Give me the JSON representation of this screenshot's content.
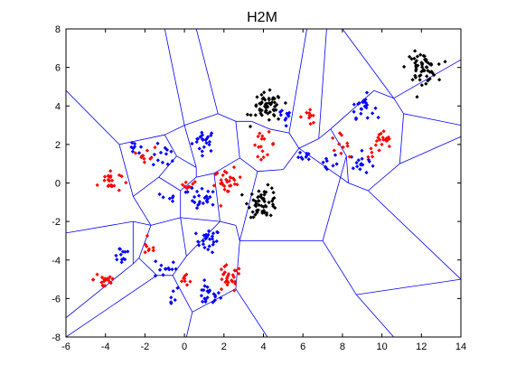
{
  "chart_data": {
    "type": "scatter",
    "title": "H2M",
    "xlabel": "",
    "ylabel": "",
    "xlim": [
      -6,
      14
    ],
    "ylim": [
      -8,
      8
    ],
    "xticks": [
      -6,
      -4,
      -2,
      0,
      2,
      4,
      6,
      8,
      10,
      12,
      14
    ],
    "yticks": [
      -8,
      -6,
      -4,
      -2,
      0,
      2,
      4,
      6,
      8
    ],
    "grid": false,
    "legend": "none",
    "colors": {
      "blue": "#0000ff",
      "red": "#ff0000",
      "black": "#000000",
      "boundary": "#0000ff",
      "frame": "#000000"
    },
    "series": [
      {
        "color": "#0000ff",
        "marker": "dot",
        "clusters": [
          {
            "cx": 1.0,
            "cy": 2.2,
            "spread": 0.3,
            "n": 22
          },
          {
            "cx": 1.0,
            "cy": -0.9,
            "spread": 0.3,
            "n": 20
          },
          {
            "cx": 1.2,
            "cy": -3.0,
            "spread": 0.3,
            "n": 24
          },
          {
            "cx": 1.2,
            "cy": -5.8,
            "spread": 0.3,
            "n": 22
          },
          {
            "cx": -2.5,
            "cy": 1.7,
            "spread": 0.2,
            "n": 8
          },
          {
            "cx": -1.0,
            "cy": 1.4,
            "spread": 0.3,
            "n": 12
          },
          {
            "cx": -1.0,
            "cy": -4.4,
            "spread": 0.3,
            "n": 12
          },
          {
            "cx": -0.8,
            "cy": -0.8,
            "spread": 0.2,
            "n": 6
          },
          {
            "cx": -0.8,
            "cy": -5.9,
            "spread": 0.3,
            "n": 6
          },
          {
            "cx": -3.2,
            "cy": -3.7,
            "spread": 0.25,
            "n": 12
          },
          {
            "cx": 0.2,
            "cy": -0.3,
            "spread": 0.15,
            "n": 4
          },
          {
            "cx": 5.2,
            "cy": 3.4,
            "spread": 0.35,
            "n": 10
          },
          {
            "cx": 6.2,
            "cy": 1.5,
            "spread": 0.2,
            "n": 8
          },
          {
            "cx": 7.2,
            "cy": 1.0,
            "spread": 0.3,
            "n": 10
          },
          {
            "cx": 9.0,
            "cy": 4.0,
            "spread": 0.3,
            "n": 22
          },
          {
            "cx": 9.0,
            "cy": 1.0,
            "spread": 0.3,
            "n": 16
          }
        ]
      },
      {
        "color": "#ff0000",
        "marker": "dot",
        "clusters": [
          {
            "cx": -3.8,
            "cy": 0.1,
            "spread": 0.3,
            "n": 22
          },
          {
            "cx": -1.9,
            "cy": 1.5,
            "spread": 0.2,
            "n": 10
          },
          {
            "cx": 0.2,
            "cy": 0.0,
            "spread": 0.2,
            "n": 8
          },
          {
            "cx": 2.2,
            "cy": 0.0,
            "spread": 0.35,
            "n": 28
          },
          {
            "cx": 4.0,
            "cy": 2.0,
            "spread": 0.3,
            "n": 16
          },
          {
            "cx": 6.3,
            "cy": 3.5,
            "spread": 0.25,
            "n": 10
          },
          {
            "cx": 7.8,
            "cy": 2.0,
            "spread": 0.25,
            "n": 10
          },
          {
            "cx": 10.0,
            "cy": 2.0,
            "spread": 0.35,
            "n": 22
          },
          {
            "cx": -4.0,
            "cy": -5.0,
            "spread": 0.3,
            "n": 20
          },
          {
            "cx": -1.8,
            "cy": -3.4,
            "spread": 0.2,
            "n": 8
          },
          {
            "cx": 0.1,
            "cy": -5.0,
            "spread": 0.2,
            "n": 8
          },
          {
            "cx": 2.2,
            "cy": -5.0,
            "spread": 0.35,
            "n": 26
          }
        ]
      },
      {
        "color": "#000000",
        "marker": "dot",
        "clusters": [
          {
            "cx": 4.2,
            "cy": 3.9,
            "spread": 0.38,
            "n": 55
          },
          {
            "cx": 4.0,
            "cy": -1.0,
            "spread": 0.38,
            "n": 55
          },
          {
            "cx": 12.0,
            "cy": 6.0,
            "spread": 0.38,
            "n": 55
          }
        ]
      }
    ],
    "voronoi_segments": [
      [
        [
          -6,
          -2.6
        ],
        [
          -2.6,
          -2.0
        ]
      ],
      [
        [
          -2.6,
          -2.0
        ],
        [
          -1.7,
          -2.2
        ]
      ],
      [
        [
          -1.7,
          -2.2
        ],
        [
          -0.2,
          -1.8
        ]
      ],
      [
        [
          -0.2,
          -1.8
        ],
        [
          1.8,
          -2.0
        ]
      ],
      [
        [
          1.8,
          -2.0
        ],
        [
          2.6,
          -2.2
        ]
      ],
      [
        [
          2.6,
          -2.2
        ],
        [
          2.8,
          -3.0
        ]
      ],
      [
        [
          -1.7,
          -2.2
        ],
        [
          -2.6,
          -0.7
        ]
      ],
      [
        [
          -2.6,
          -0.7
        ],
        [
          -1.3,
          0.3
        ]
      ],
      [
        [
          -1.3,
          0.3
        ],
        [
          -0.2,
          -0.4
        ]
      ],
      [
        [
          -0.2,
          -0.4
        ],
        [
          -0.2,
          -1.8
        ]
      ],
      [
        [
          -0.2,
          -0.4
        ],
        [
          0.6,
          0.3
        ]
      ],
      [
        [
          0.6,
          0.3
        ],
        [
          1.5,
          0.5
        ]
      ],
      [
        [
          1.5,
          0.5
        ],
        [
          2.8,
          1.3
        ]
      ],
      [
        [
          2.8,
          1.3
        ],
        [
          3.7,
          0.6
        ]
      ],
      [
        [
          3.7,
          0.6
        ],
        [
          5.0,
          0.7
        ]
      ],
      [
        [
          5.0,
          0.7
        ],
        [
          5.8,
          1.8
        ]
      ],
      [
        [
          1.8,
          -2.0
        ],
        [
          1.5,
          0.5
        ]
      ],
      [
        [
          0.6,
          0.3
        ],
        [
          0.6,
          0.8
        ]
      ],
      [
        [
          0.6,
          0.8
        ],
        [
          -0.4,
          1.4
        ]
      ],
      [
        [
          -1.3,
          0.3
        ],
        [
          -0.4,
          1.4
        ]
      ],
      [
        [
          -0.4,
          1.4
        ],
        [
          -1.0,
          2.5
        ]
      ],
      [
        [
          -1.0,
          2.5
        ],
        [
          -3.3,
          2.0
        ]
      ],
      [
        [
          -3.3,
          2.0
        ],
        [
          -6,
          4.8
        ]
      ],
      [
        [
          -3.3,
          2.0
        ],
        [
          -2.6,
          -0.7
        ]
      ],
      [
        [
          -1.0,
          2.5
        ],
        [
          0.0,
          3.0
        ]
      ],
      [
        [
          0.0,
          3.0
        ],
        [
          1.7,
          3.6
        ]
      ],
      [
        [
          1.7,
          3.6
        ],
        [
          2.6,
          3.2
        ]
      ],
      [
        [
          2.6,
          3.2
        ],
        [
          2.8,
          1.3
        ]
      ],
      [
        [
          0.0,
          3.0
        ],
        [
          -1.0,
          8
        ]
      ],
      [
        [
          0.6,
          8
        ],
        [
          1.7,
          3.6
        ]
      ],
      [
        [
          0.6,
          0.8
        ],
        [
          0.0,
          3.0
        ]
      ],
      [
        [
          2.6,
          3.2
        ],
        [
          3.4,
          3.2
        ]
      ],
      [
        [
          3.4,
          3.2
        ],
        [
          4.3,
          2.8
        ]
      ],
      [
        [
          4.3,
          2.8
        ],
        [
          5.3,
          2.6
        ]
      ],
      [
        [
          5.3,
          2.6
        ],
        [
          5.8,
          1.8
        ]
      ],
      [
        [
          5.3,
          2.6
        ],
        [
          6.2,
          8
        ]
      ],
      [
        [
          5.8,
          1.8
        ],
        [
          6.8,
          2.3
        ]
      ],
      [
        [
          6.8,
          2.3
        ],
        [
          7.2,
          8
        ]
      ],
      [
        [
          6.8,
          2.3
        ],
        [
          7.4,
          2.8
        ]
      ],
      [
        [
          7.4,
          2.8
        ],
        [
          8.2,
          1.4
        ]
      ],
      [
        [
          8.2,
          1.4
        ],
        [
          8.3,
          0.0
        ]
      ],
      [
        [
          8.3,
          0.0
        ],
        [
          5.8,
          1.8
        ]
      ],
      [
        [
          8.3,
          0.0
        ],
        [
          9.3,
          -0.4
        ]
      ],
      [
        [
          9.3,
          -0.4
        ],
        [
          10.9,
          1.0
        ]
      ],
      [
        [
          10.9,
          1.0
        ],
        [
          14,
          2.4
        ]
      ],
      [
        [
          10.9,
          1.0
        ],
        [
          11.1,
          3.6
        ]
      ],
      [
        [
          11.1,
          3.6
        ],
        [
          14,
          3.0
        ]
      ],
      [
        [
          11.1,
          3.6
        ],
        [
          10.6,
          4.4
        ]
      ],
      [
        [
          10.6,
          4.4
        ],
        [
          8.0,
          8
        ]
      ],
      [
        [
          10.6,
          4.4
        ],
        [
          14,
          6.4
        ]
      ],
      [
        [
          9.3,
          -0.4
        ],
        [
          14,
          -5.0
        ]
      ],
      [
        [
          7.4,
          2.8
        ],
        [
          9.6,
          4.8
        ]
      ],
      [
        [
          9.6,
          4.8
        ],
        [
          10.6,
          4.4
        ]
      ],
      [
        [
          3.7,
          0.6
        ],
        [
          2.8,
          -3.0
        ]
      ],
      [
        [
          2.8,
          -3.0
        ],
        [
          2.6,
          -5.5
        ]
      ],
      [
        [
          2.6,
          -5.5
        ],
        [
          4.2,
          -8
        ]
      ],
      [
        [
          2.8,
          -3.0
        ],
        [
          7.0,
          -3.0
        ]
      ],
      [
        [
          7.0,
          -3.0
        ],
        [
          8.2,
          1.4
        ]
      ],
      [
        [
          7.0,
          -3.0
        ],
        [
          8.7,
          -5.8
        ]
      ],
      [
        [
          8.7,
          -5.8
        ],
        [
          14,
          -5.0
        ]
      ],
      [
        [
          8.7,
          -5.8
        ],
        [
          10.6,
          -8
        ]
      ],
      [
        [
          2.6,
          -5.5
        ],
        [
          0.4,
          -6.7
        ]
      ],
      [
        [
          0.4,
          -6.7
        ],
        [
          0.1,
          -8
        ]
      ],
      [
        [
          0.4,
          -6.7
        ],
        [
          -0.6,
          -4.8
        ]
      ],
      [
        [
          -0.6,
          -4.8
        ],
        [
          0.1,
          -3.8
        ]
      ],
      [
        [
          0.1,
          -3.8
        ],
        [
          -0.2,
          -1.8
        ]
      ],
      [
        [
          0.1,
          -3.8
        ],
        [
          1.8,
          -2.0
        ]
      ],
      [
        [
          -0.6,
          -4.8
        ],
        [
          -1.4,
          -4.8
        ]
      ],
      [
        [
          -1.4,
          -4.8
        ],
        [
          -2.3,
          -3.9
        ]
      ],
      [
        [
          -2.3,
          -3.9
        ],
        [
          -1.7,
          -2.2
        ]
      ],
      [
        [
          -2.3,
          -3.9
        ],
        [
          -2.6,
          -4.2
        ]
      ],
      [
        [
          -2.6,
          -4.2
        ],
        [
          -6,
          -7.0
        ]
      ],
      [
        [
          -2.6,
          -4.2
        ],
        [
          -2.6,
          -2.0
        ]
      ],
      [
        [
          -1.4,
          -4.8
        ],
        [
          -6,
          -8.0
        ]
      ]
    ]
  }
}
